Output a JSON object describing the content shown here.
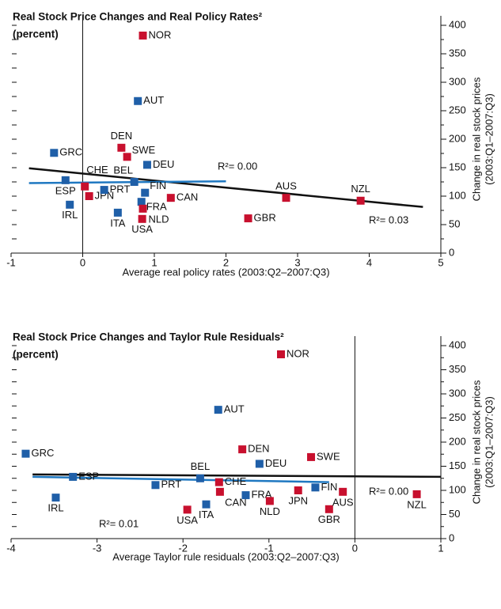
{
  "chart_data": [
    {
      "type": "scatter",
      "title": "Real Stock Price Changes and Real Policy Rates²",
      "subtitle": "(percent)",
      "xlabel": "Average real policy rates (2003:Q2–2007:Q3)",
      "ylabel": [
        "Change in real stock prices",
        "(2003:Q1–2007:Q3)"
      ],
      "xlim": [
        -1,
        5
      ],
      "xticks": [
        -1,
        0,
        1,
        2,
        3,
        4,
        5
      ],
      "ylim": [
        0,
        400
      ],
      "yticks": [
        0,
        50,
        100,
        150,
        200,
        250,
        300,
        350,
        400
      ],
      "yticks_minor": [
        25,
        75,
        125,
        175,
        225,
        275,
        325,
        375
      ],
      "points": [
        {
          "label": "NOR",
          "x": 0.84,
          "y": 382,
          "color": "#c8102e"
        },
        {
          "label": "AUT",
          "x": 0.77,
          "y": 267,
          "color": "#1f5fa8"
        },
        {
          "label": "DEN",
          "x": 0.54,
          "y": 185,
          "color": "#c8102e"
        },
        {
          "label": "SWE",
          "x": 0.62,
          "y": 169,
          "color": "#c8102e"
        },
        {
          "label": "GRC",
          "x": -0.4,
          "y": 176,
          "color": "#1f5fa8"
        },
        {
          "label": "DEU",
          "x": 0.9,
          "y": 155,
          "color": "#1f5fa8"
        },
        {
          "label": "CHE",
          "x": 0.03,
          "y": 117,
          "color": "#c8102e"
        },
        {
          "label": "BEL",
          "x": 0.72,
          "y": 125,
          "color": "#1f5fa8"
        },
        {
          "label": "ESP",
          "x": -0.24,
          "y": 128,
          "color": "#1f5fa8"
        },
        {
          "label": "JPN",
          "x": 0.09,
          "y": 100,
          "color": "#c8102e"
        },
        {
          "label": "PRT",
          "x": 0.3,
          "y": 111,
          "color": "#1f5fa8"
        },
        {
          "label": "FIN",
          "x": 0.87,
          "y": 106,
          "color": "#1f5fa8"
        },
        {
          "label": "CAN",
          "x": 1.23,
          "y": 97,
          "color": "#c8102e"
        },
        {
          "label": "IRL",
          "x": -0.18,
          "y": 85,
          "color": "#1f5fa8"
        },
        {
          "label": "FRA",
          "x": 0.82,
          "y": 90,
          "color": "#1f5fa8"
        },
        {
          "label": "ITA",
          "x": 0.49,
          "y": 71,
          "color": "#1f5fa8"
        },
        {
          "label": "NLD",
          "x": 0.84,
          "y": 78,
          "color": "#c8102e"
        },
        {
          "label": "USA",
          "x": 0.83,
          "y": 60,
          "color": "#c8102e"
        },
        {
          "label": "GBR",
          "x": 2.31,
          "y": 61,
          "color": "#c8102e"
        },
        {
          "label": "AUS",
          "x": 2.84,
          "y": 97,
          "color": "#c8102e"
        },
        {
          "label": "NZL",
          "x": 3.88,
          "y": 92,
          "color": "#c8102e"
        }
      ],
      "lines": [
        {
          "color": "#111111",
          "x": [
            -0.75,
            4.75
          ],
          "y": [
            149,
            81
          ]
        },
        {
          "color": "#1f78c1",
          "x": [
            -0.75,
            2.0
          ],
          "y": [
            123,
            126
          ]
        }
      ],
      "annotations": [
        "R²= 0.00",
        "R²= 0.03"
      ]
    },
    {
      "type": "scatter",
      "title": "Real Stock Price Changes and Taylor Rule Residuals²",
      "subtitle": "(percent)",
      "xlabel": "Average Taylor rule residuals (2003:Q2–2007:Q3)",
      "ylabel": [
        "Change in real stock prices",
        "(2003:Q1–2007:Q3)"
      ],
      "xlim": [
        -4,
        1
      ],
      "xticks": [
        -4,
        -3,
        -2,
        -1,
        0,
        1
      ],
      "ylim": [
        0,
        400
      ],
      "yticks": [
        0,
        50,
        100,
        150,
        200,
        250,
        300,
        350,
        400
      ],
      "yticks_minor": [
        25,
        75,
        125,
        175,
        225,
        275,
        325,
        375
      ],
      "points": [
        {
          "label": "NOR",
          "x": -0.86,
          "y": 382,
          "color": "#c8102e"
        },
        {
          "label": "AUT",
          "x": -1.59,
          "y": 267,
          "color": "#1f5fa8"
        },
        {
          "label": "DEN",
          "x": -1.31,
          "y": 185,
          "color": "#c8102e"
        },
        {
          "label": "SWE",
          "x": -0.51,
          "y": 169,
          "color": "#c8102e"
        },
        {
          "label": "GRC",
          "x": -3.83,
          "y": 176,
          "color": "#1f5fa8"
        },
        {
          "label": "DEU",
          "x": -1.11,
          "y": 155,
          "color": "#1f5fa8"
        },
        {
          "label": "CHE",
          "x": -1.58,
          "y": 117,
          "color": "#c8102e"
        },
        {
          "label": "BEL",
          "x": -1.8,
          "y": 125,
          "color": "#1f5fa8"
        },
        {
          "label": "ESP",
          "x": -3.28,
          "y": 128,
          "color": "#1f5fa8"
        },
        {
          "label": "JPN",
          "x": -0.66,
          "y": 100,
          "color": "#c8102e"
        },
        {
          "label": "PRT",
          "x": -2.32,
          "y": 111,
          "color": "#1f5fa8"
        },
        {
          "label": "FIN",
          "x": -0.46,
          "y": 106,
          "color": "#1f5fa8"
        },
        {
          "label": "CAN",
          "x": -1.57,
          "y": 97,
          "color": "#c8102e"
        },
        {
          "label": "IRL",
          "x": -3.48,
          "y": 85,
          "color": "#1f5fa8"
        },
        {
          "label": "FRA",
          "x": -1.27,
          "y": 90,
          "color": "#1f5fa8"
        },
        {
          "label": "ITA",
          "x": -1.73,
          "y": 71,
          "color": "#1f5fa8"
        },
        {
          "label": "NLD",
          "x": -0.99,
          "y": 78,
          "color": "#c8102e"
        },
        {
          "label": "USA",
          "x": -1.95,
          "y": 60,
          "color": "#c8102e"
        },
        {
          "label": "GBR",
          "x": -0.3,
          "y": 61,
          "color": "#c8102e"
        },
        {
          "label": "AUS",
          "x": -0.14,
          "y": 97,
          "color": "#c8102e"
        },
        {
          "label": "NZL",
          "x": 0.72,
          "y": 92,
          "color": "#c8102e"
        }
      ],
      "lines": [
        {
          "color": "#111111",
          "x": [
            -3.75,
            1.0
          ],
          "y": [
            133,
            128
          ]
        },
        {
          "color": "#1f78c1",
          "x": [
            -3.75,
            -0.3
          ],
          "y": [
            128,
            117
          ]
        }
      ],
      "annotations": [
        "R²= 0.01",
        "R²= 0.00"
      ]
    }
  ]
}
